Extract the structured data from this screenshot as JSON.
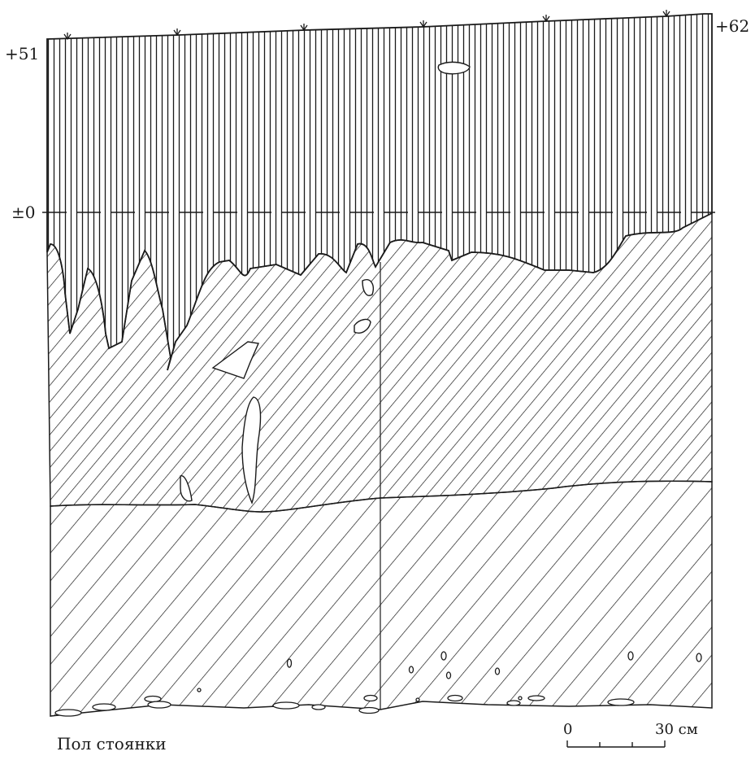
{
  "elevations": {
    "left_top": "+51",
    "right_top": "+62",
    "zero": "±0"
  },
  "caption": "Пол стоянки",
  "scale_bar": {
    "start": "0",
    "end": "30 см"
  },
  "colors": {
    "ink": "#1a1a1a",
    "paper": "#ffffff"
  }
}
